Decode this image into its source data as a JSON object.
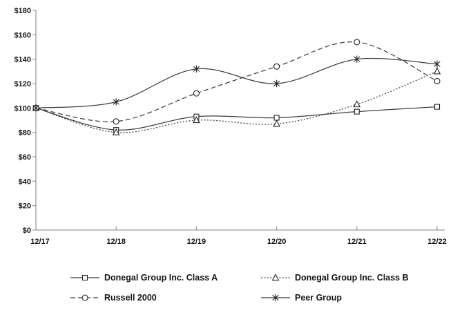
{
  "chart_data": {
    "type": "line",
    "title": "",
    "xlabel": "",
    "ylabel": "",
    "categories": [
      "12/17",
      "12/18",
      "12/19",
      "12/20",
      "12/21",
      "12/22"
    ],
    "series": [
      {
        "name": "Donegal Group Inc. Class A",
        "marker": "square",
        "line": "solid",
        "values": [
          100,
          82,
          93,
          92,
          97,
          101
        ]
      },
      {
        "name": "Donegal Group Inc. Class B",
        "marker": "triangle",
        "line": "dotted",
        "values": [
          100,
          80,
          90,
          87,
          103,
          130
        ]
      },
      {
        "name": "Russell 2000",
        "marker": "circle",
        "line": "dashed",
        "values": [
          100,
          89,
          112,
          134,
          154,
          122
        ]
      },
      {
        "name": "Peer Group",
        "marker": "asterisk",
        "line": "solid",
        "values": [
          100,
          105,
          132,
          120,
          140,
          136
        ]
      }
    ],
    "ylim": [
      0,
      180
    ],
    "ytick_step": 20,
    "ytick_labels": [
      "$0",
      "$20",
      "$40",
      "$60",
      "$80",
      "$100",
      "$120",
      "$140",
      "$160",
      "$180"
    ],
    "grid": false,
    "legend_position": "bottom",
    "colors": {
      "series_line": "#3d3d3d",
      "marker_stroke": "#222222",
      "marker_fill": "#ffffff",
      "axis": "#9a9a9a",
      "text": "#141414",
      "background": "#ffffff"
    }
  }
}
